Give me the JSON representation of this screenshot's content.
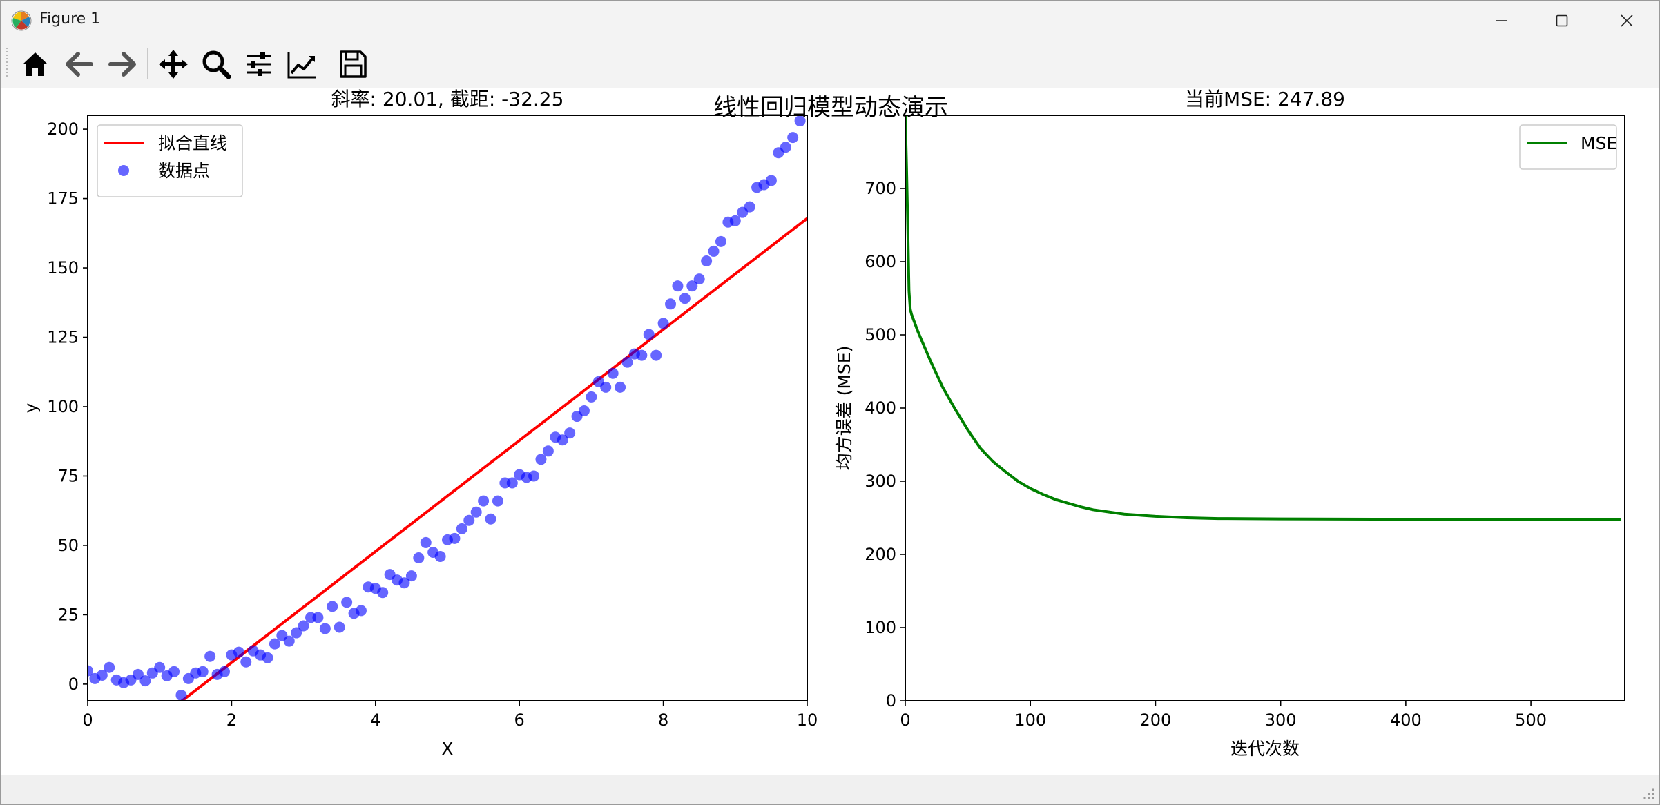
{
  "window": {
    "title": "Figure 1"
  },
  "toolbar": {
    "buttons": [
      {
        "name": "home-icon",
        "label": "Home"
      },
      {
        "name": "back-icon",
        "label": "Back"
      },
      {
        "name": "forward-icon",
        "label": "Forward"
      },
      {
        "name": "pan-icon",
        "label": "Pan"
      },
      {
        "name": "zoom-icon",
        "label": "Zoom"
      },
      {
        "name": "configure-subplots-icon",
        "label": "Subplots"
      },
      {
        "name": "edit-axis-icon",
        "label": "Customize"
      },
      {
        "name": "save-icon",
        "label": "Save"
      }
    ]
  },
  "figure": {
    "suptitle": "线性回归模型动态演示"
  },
  "chart_data": [
    {
      "type": "scatter",
      "title": "斜率: 20.01, 截距: -32.25",
      "xlabel": "X",
      "ylabel": "y",
      "xlim": [
        0,
        10
      ],
      "ylim": [
        -6,
        205
      ],
      "xticks": [
        "0",
        "2",
        "4",
        "6",
        "8",
        "10"
      ],
      "yticks": [
        "0",
        "25",
        "50",
        "75",
        "100",
        "125",
        "150",
        "175",
        "200"
      ],
      "legend_position": "upper-left",
      "series": [
        {
          "name": "拟合直线",
          "kind": "line",
          "color": "#ff0000",
          "slope": 20.01,
          "intercept": -32.25
        },
        {
          "name": "数据点",
          "kind": "scatter",
          "color": "#0000ff",
          "points": [
            [
              0.0,
              4.8
            ],
            [
              0.1,
              2.0
            ],
            [
              0.2,
              3.2
            ],
            [
              0.3,
              6.0
            ],
            [
              0.4,
              1.5
            ],
            [
              0.5,
              0.5
            ],
            [
              0.6,
              1.5
            ],
            [
              0.7,
              3.5
            ],
            [
              0.8,
              1.2
            ],
            [
              0.9,
              4.0
            ],
            [
              1.0,
              6.0
            ],
            [
              1.1,
              3.0
            ],
            [
              1.2,
              4.5
            ],
            [
              1.3,
              -4.0
            ],
            [
              1.4,
              2.0
            ],
            [
              1.5,
              4.0
            ],
            [
              1.6,
              4.5
            ],
            [
              1.7,
              10.0
            ],
            [
              1.8,
              3.5
            ],
            [
              1.9,
              4.5
            ],
            [
              2.0,
              10.5
            ],
            [
              2.1,
              11.5
            ],
            [
              2.2,
              8.0
            ],
            [
              2.3,
              12.0
            ],
            [
              2.4,
              10.5
            ],
            [
              2.5,
              9.5
            ],
            [
              2.6,
              14.5
            ],
            [
              2.7,
              17.5
            ],
            [
              2.8,
              15.5
            ],
            [
              2.9,
              18.5
            ],
            [
              3.0,
              21.0
            ],
            [
              3.1,
              24.0
            ],
            [
              3.2,
              24.0
            ],
            [
              3.3,
              20.0
            ],
            [
              3.4,
              28.0
            ],
            [
              3.5,
              20.5
            ],
            [
              3.6,
              29.5
            ],
            [
              3.7,
              25.5
            ],
            [
              3.8,
              26.5
            ],
            [
              3.9,
              35.0
            ],
            [
              4.0,
              34.5
            ],
            [
              4.1,
              33.0
            ],
            [
              4.2,
              39.5
            ],
            [
              4.3,
              37.5
            ],
            [
              4.4,
              36.5
            ],
            [
              4.5,
              39.0
            ],
            [
              4.6,
              45.5
            ],
            [
              4.7,
              51.0
            ],
            [
              4.8,
              47.5
            ],
            [
              4.9,
              46.0
            ],
            [
              5.0,
              52.0
            ],
            [
              5.1,
              52.5
            ],
            [
              5.2,
              56.0
            ],
            [
              5.3,
              59.0
            ],
            [
              5.4,
              62.0
            ],
            [
              5.5,
              66.0
            ],
            [
              5.6,
              59.5
            ],
            [
              5.7,
              66.0
            ],
            [
              5.8,
              72.5
            ],
            [
              5.9,
              72.5
            ],
            [
              6.0,
              75.5
            ],
            [
              6.1,
              74.5
            ],
            [
              6.2,
              75.0
            ],
            [
              6.3,
              81.0
            ],
            [
              6.4,
              84.0
            ],
            [
              6.5,
              89.0
            ],
            [
              6.6,
              88.0
            ],
            [
              6.7,
              90.5
            ],
            [
              6.8,
              96.5
            ],
            [
              6.9,
              98.5
            ],
            [
              7.0,
              103.5
            ],
            [
              7.1,
              109.0
            ],
            [
              7.2,
              107.0
            ],
            [
              7.3,
              112.0
            ],
            [
              7.4,
              107.0
            ],
            [
              7.5,
              116.0
            ],
            [
              7.6,
              119.0
            ],
            [
              7.7,
              118.5
            ],
            [
              7.8,
              126.0
            ],
            [
              7.9,
              118.5
            ],
            [
              8.0,
              130.0
            ],
            [
              8.1,
              137.0
            ],
            [
              8.2,
              143.5
            ],
            [
              8.3,
              139.0
            ],
            [
              8.4,
              143.5
            ],
            [
              8.5,
              146.0
            ],
            [
              8.6,
              152.5
            ],
            [
              8.7,
              156.0
            ],
            [
              8.8,
              159.5
            ],
            [
              8.9,
              166.5
            ],
            [
              9.0,
              167.0
            ],
            [
              9.1,
              170.0
            ],
            [
              9.2,
              172.0
            ],
            [
              9.3,
              179.0
            ],
            [
              9.4,
              180.0
            ],
            [
              9.5,
              181.5
            ],
            [
              9.6,
              191.5
            ],
            [
              9.7,
              193.5
            ],
            [
              9.8,
              197.0
            ],
            [
              9.9,
              203.0
            ]
          ]
        }
      ]
    },
    {
      "type": "line",
      "title": "当前MSE: 247.89",
      "xlabel": "迭代次数",
      "ylabel": "均方误差 (MSE)",
      "xlim": [
        0,
        575
      ],
      "ylim": [
        0,
        800
      ],
      "xticks": [
        "0",
        "100",
        "200",
        "300",
        "400",
        "500"
      ],
      "yticks": [
        "0",
        "100",
        "200",
        "300",
        "400",
        "500",
        "600",
        "700"
      ],
      "legend_position": "upper-right",
      "series": [
        {
          "name": "MSE",
          "color": "#008000",
          "x": [
            0,
            1,
            2,
            3,
            4,
            5,
            10,
            20,
            30,
            40,
            50,
            60,
            70,
            80,
            90,
            100,
            110,
            120,
            130,
            140,
            150,
            175,
            200,
            225,
            250,
            300,
            350,
            400,
            450,
            500,
            572
          ],
          "y": [
            800,
            730,
            650,
            560,
            535,
            528,
            505,
            465,
            428,
            398,
            370,
            345,
            327,
            313,
            300,
            290,
            282,
            275,
            270,
            265,
            261,
            255,
            252,
            250,
            249,
            248.5,
            248.2,
            248.0,
            247.9,
            247.9,
            247.89
          ]
        }
      ]
    }
  ]
}
